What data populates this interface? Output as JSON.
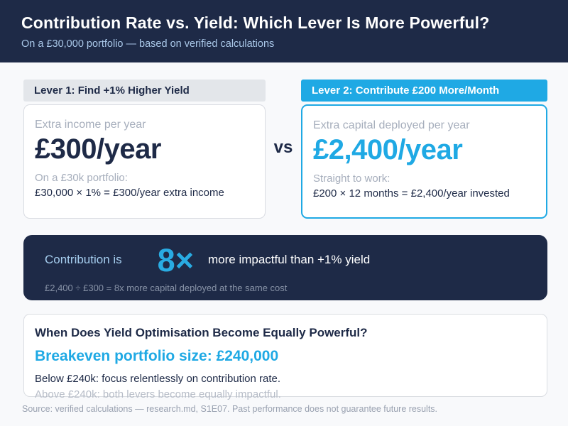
{
  "header": {
    "title": "Contribution Rate vs. Yield: Which Lever Is More Powerful?",
    "subtitle": "On a £30,000 portfolio — based on verified calculations"
  },
  "lever1": {
    "header": "Lever 1: Find +1% Higher Yield",
    "label": "Extra income per year",
    "value": "£300/year",
    "note": "On a £30k portfolio:",
    "formula": "£30,000 × 1% = £300/year extra income"
  },
  "vs_label": "vs",
  "lever2": {
    "header": "Lever 2: Contribute £200 More/Month",
    "label": "Extra capital deployed per year",
    "value": "£2,400/year",
    "note": "Straight to work:",
    "formula": "£200 × 12 months = £2,400/year invested"
  },
  "banner": {
    "prefix": "Contribution is",
    "multiplier": "8×",
    "suffix": "more impactful than +1% yield",
    "detail": "£2,400 ÷ £300 = 8x more capital deployed at the same cost"
  },
  "breakeven": {
    "title": "When Does Yield Optimisation Become Equally Powerful?",
    "highlight": "Breakeven portfolio size: £240,000",
    "below": "Below £240k: focus relentlessly on contribution rate.",
    "above": "Above £240k: both levers become equally impactful."
  },
  "footer": {
    "source": "Source: verified calculations — research.md, S1E07. Past performance does not guarantee future results."
  },
  "colors": {
    "navy": "#1e2a47",
    "accent_blue": "#1fa9e4",
    "light_blue": "#a9c7e8",
    "muted_gray": "#a6aebc",
    "page_background": "#f8f9fb"
  },
  "chart_data": {
    "type": "table",
    "title": "Contribution Rate vs. Yield: Which Lever Is More Powerful?",
    "categories": [
      "Lever 1: Find +1% Higher Yield",
      "Lever 2: Contribute £200 More/Month"
    ],
    "values": [
      300,
      2400
    ],
    "value_unit": "£/year",
    "annotations": [
      "Contribution is 8× more impactful than +1% yield",
      "£2,400 ÷ £300 = 8x more capital deployed at the same cost",
      "Breakeven portfolio size: £240,000"
    ]
  }
}
